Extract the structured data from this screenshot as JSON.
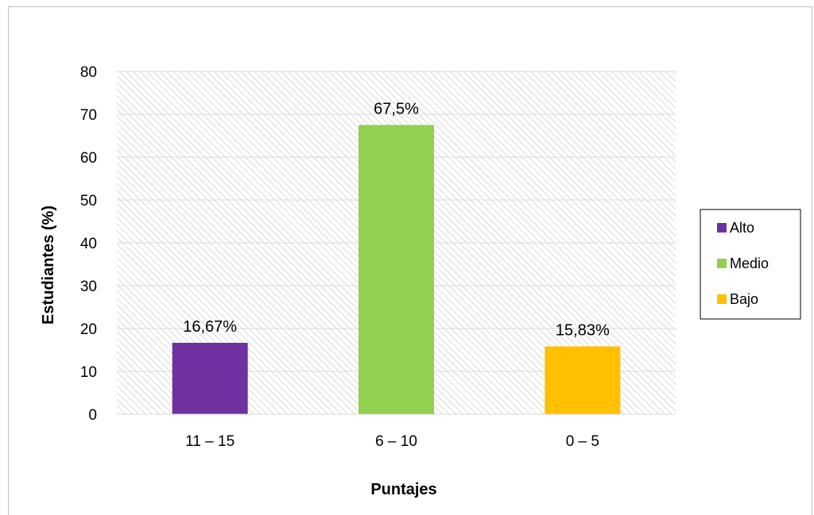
{
  "chart_data": {
    "type": "bar",
    "title": "",
    "xlabel": "Puntajes",
    "ylabel": "Estudiantes (%)",
    "categories": [
      "11 – 15",
      "6 – 10",
      "0 – 5"
    ],
    "series": [
      {
        "name": "Alto",
        "category": "11 – 15",
        "value": 16.67,
        "label": "16,67%",
        "color": "#7030a0"
      },
      {
        "name": "Medio",
        "category": "6 – 10",
        "value": 67.5,
        "label": "67,5%",
        "color": "#92d050"
      },
      {
        "name": "Bajo",
        "category": "0 – 5",
        "value": 15.83,
        "label": "15,83%",
        "color": "#ffc000"
      }
    ],
    "ylim": [
      0,
      80
    ],
    "yticks": [
      0,
      10,
      20,
      30,
      40,
      50,
      60,
      70,
      80
    ],
    "grid": true,
    "plot_background": "diagonal-hatch",
    "legend_position": "right"
  }
}
